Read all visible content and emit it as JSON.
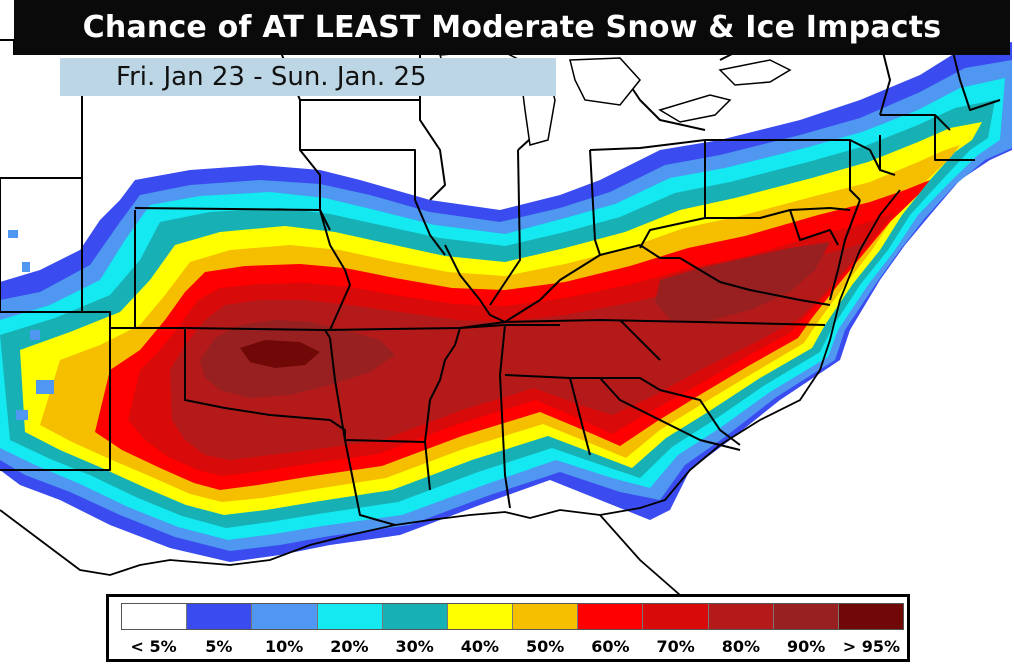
{
  "header": {
    "title": "Chance of AT LEAST Moderate Snow & Ice Impacts",
    "date_range": "Fri. Jan 23 - Sun. Jan. 25"
  },
  "legend": {
    "items": [
      {
        "label": "< 5%",
        "color": "#ffffff"
      },
      {
        "label": "5%",
        "color": "#3a4bf0"
      },
      {
        "label": "10%",
        "color": "#4f97f0"
      },
      {
        "label": "20%",
        "color": "#14e8f0"
      },
      {
        "label": "30%",
        "color": "#17b0b4"
      },
      {
        "label": "40%",
        "color": "#ffff00"
      },
      {
        "label": "50%",
        "color": "#f5bf00"
      },
      {
        "label": "60%",
        "color": "#ff0000"
      },
      {
        "label": "70%",
        "color": "#d80a0a"
      },
      {
        "label": "80%",
        "color": "#b51a1a"
      },
      {
        "label": "90%",
        "color": "#982020"
      },
      {
        "label": "> 95%",
        "color": "#700808"
      }
    ]
  },
  "map": {
    "region": "Southern and Eastern United States",
    "border_color": "#000000",
    "background_color": "#ffffff"
  }
}
